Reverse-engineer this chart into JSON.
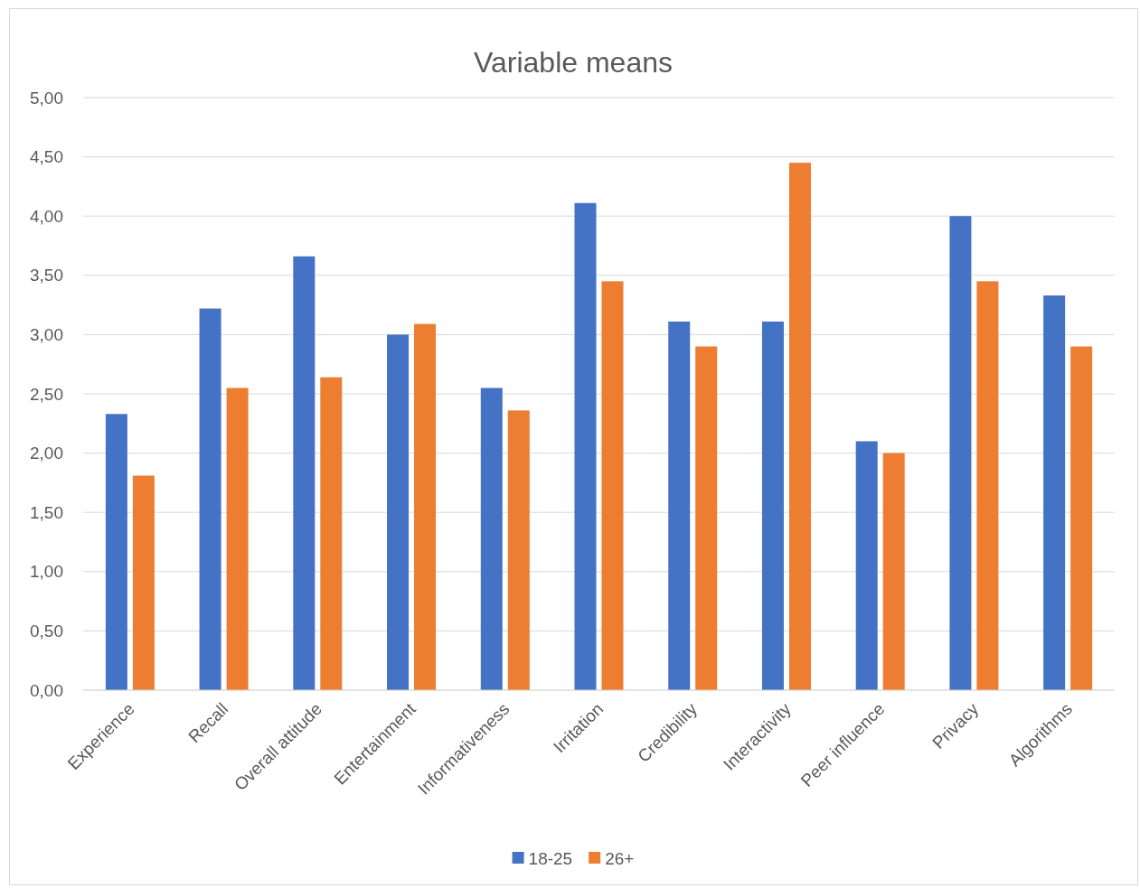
{
  "chart_data": {
    "type": "bar",
    "title": "Variable means",
    "categories": [
      "Experience",
      "Recall",
      "Overall attitude",
      "Entertainment",
      "Informativeness",
      "Irritation",
      "Credibility",
      "Interactivity",
      "Peer influence",
      "Privacy",
      "Algorithms"
    ],
    "series": [
      {
        "name": "18-25",
        "color": "#4472c4",
        "values": [
          2.33,
          3.22,
          3.66,
          3.0,
          2.55,
          4.11,
          3.11,
          3.11,
          2.1,
          4.0,
          3.33
        ]
      },
      {
        "name": "26+",
        "color": "#ed7d31",
        "values": [
          1.81,
          2.55,
          2.64,
          3.09,
          2.36,
          3.45,
          2.9,
          4.45,
          2.0,
          3.45,
          2.9
        ]
      }
    ],
    "ylim": [
      0,
      5
    ],
    "yticks": [
      {
        "value": 0,
        "label": "0,00"
      },
      {
        "value": 0.5,
        "label": "0,50"
      },
      {
        "value": 1,
        "label": "1,00"
      },
      {
        "value": 1.5,
        "label": "1,50"
      },
      {
        "value": 2,
        "label": "2,00"
      },
      {
        "value": 2.5,
        "label": "2,50"
      },
      {
        "value": 3,
        "label": "3,00"
      },
      {
        "value": 3.5,
        "label": "3,50"
      },
      {
        "value": 4,
        "label": "4,00"
      },
      {
        "value": 4.5,
        "label": "4,50"
      },
      {
        "value": 5,
        "label": "5,00"
      }
    ],
    "grid": "y",
    "legend": "bottom"
  }
}
